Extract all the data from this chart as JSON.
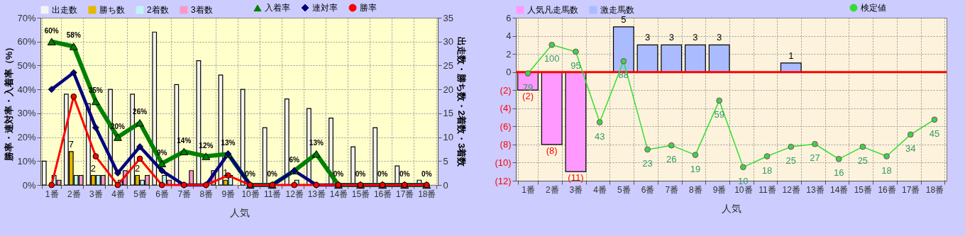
{
  "chart_data": [
    {
      "type": "bar",
      "xlabel": "人気",
      "ylabel": "勝率・連対率・入着率（%）",
      "y2label": "出走数・勝ち数・2着数・3着数",
      "legend": "top",
      "grid": true,
      "categories": [
        "1番",
        "2番",
        "3番",
        "4番",
        "5番",
        "6番",
        "7番",
        "8番",
        "9番",
        "10番",
        "11番",
        "12番",
        "13番",
        "14番",
        "15番",
        "16番",
        "17番",
        "18番"
      ],
      "ylim": [
        0,
        70
      ],
      "yticks": [
        {
          "value": 0,
          "label": "0%"
        },
        {
          "value": 10,
          "label": "10%"
        },
        {
          "value": 20,
          "label": "20%"
        },
        {
          "value": 30,
          "label": "30%"
        },
        {
          "value": 40,
          "label": "40%"
        },
        {
          "value": 50,
          "label": "50%"
        },
        {
          "value": 60,
          "label": "60%"
        },
        {
          "value": 70,
          "label": "70%"
        }
      ],
      "y2lim": [
        0,
        35
      ],
      "y2ticks": [
        0,
        5,
        10,
        15,
        20,
        25,
        30,
        35
      ],
      "series": [
        {
          "name": "出走数",
          "color": "#f4f4f4",
          "axis": "y2",
          "values": [
            5,
            19,
            17,
            20,
            19,
            32,
            21,
            26,
            23,
            20,
            12,
            18,
            16,
            14,
            8,
            12,
            4,
            1
          ]
        },
        {
          "name": "勝ち数",
          "color": "#e6b800",
          "axis": "y2",
          "values": [
            0,
            7,
            2,
            0,
            2,
            0,
            0,
            0,
            1,
            0,
            0,
            0,
            0,
            0,
            0,
            0,
            0,
            0
          ],
          "value_labels": [
            null,
            "7",
            "2",
            null,
            "2",
            null,
            null,
            null,
            "1",
            null,
            null,
            null,
            null,
            null,
            null,
            null,
            null,
            null
          ]
        },
        {
          "name": "2着数",
          "color": "#bff5f5",
          "axis": "y2",
          "values": [
            2,
            2,
            2,
            1,
            1,
            2,
            0,
            0,
            2,
            0,
            0,
            1,
            0,
            0,
            0,
            0,
            0,
            0
          ]
        },
        {
          "name": "3着数",
          "color": "#f59ac8",
          "axis": "y2",
          "values": [
            1,
            2,
            2,
            3,
            2,
            1,
            3,
            3,
            0,
            0,
            0,
            0,
            0,
            0,
            0,
            0,
            0,
            0
          ]
        },
        {
          "name": "入着率",
          "type": "line",
          "color": "#008000",
          "marker": "triangle",
          "axis": "y",
          "values": [
            60,
            58,
            35,
            20,
            26,
            9,
            14,
            12,
            13,
            0,
            0,
            6,
            13,
            0,
            0,
            0,
            0,
            0
          ],
          "value_labels": [
            "60%",
            "58%",
            "35%",
            "20%",
            "26%",
            "9%",
            "14%",
            "12%",
            "13%",
            "0%",
            "0%",
            "6%",
            "13%",
            "0%",
            "0%",
            "0%",
            "0%",
            "0%"
          ]
        },
        {
          "name": "連対率",
          "type": "line",
          "color": "#000080",
          "marker": "diamond",
          "axis": "y",
          "values": [
            40,
            47,
            24,
            5,
            16,
            6,
            0,
            0,
            13,
            0,
            0,
            6,
            0,
            0,
            0,
            0,
            0,
            0
          ]
        },
        {
          "name": "勝率",
          "type": "line",
          "color": "#ff0000",
          "marker": "circle",
          "axis": "y",
          "values": [
            0,
            37,
            12,
            0,
            11,
            0,
            0,
            0,
            4,
            0,
            0,
            0,
            0,
            0,
            0,
            0,
            0,
            0
          ]
        }
      ]
    },
    {
      "type": "bar",
      "xlabel": "人気",
      "legend": "top",
      "grid": true,
      "stacked": true,
      "categories": [
        "1番",
        "2番",
        "3番",
        "4番",
        "5番",
        "6番",
        "7番",
        "8番",
        "9番",
        "10番",
        "11番",
        "12番",
        "13番",
        "14番",
        "15番",
        "16番",
        "17番",
        "18番"
      ],
      "ylim": [
        -12,
        6
      ],
      "yticks": [
        {
          "value": -12,
          "label": "(12)"
        },
        {
          "value": -10,
          "label": "(10)"
        },
        {
          "value": -8,
          "label": "(8)"
        },
        {
          "value": -6,
          "label": "(6)"
        },
        {
          "value": -4,
          "label": "(4)"
        },
        {
          "value": -2,
          "label": "(2)"
        },
        0,
        2,
        4,
        6
      ],
      "y2lim": [
        0,
        120
      ],
      "ref_lines": [
        {
          "axis": "y",
          "value": 0,
          "color": "#ff0000"
        }
      ],
      "series": [
        {
          "name": "人気凡走馬数",
          "color": "#ff99ff",
          "axis": "y",
          "values": [
            -2,
            -8,
            -11,
            null,
            null,
            null,
            null,
            null,
            null,
            null,
            null,
            null,
            null,
            null,
            null,
            null,
            null,
            null
          ],
          "value_labels": [
            "(2)",
            "(8)",
            "(11)",
            null,
            null,
            null,
            null,
            null,
            null,
            null,
            null,
            null,
            null,
            null,
            null,
            null,
            null,
            null
          ]
        },
        {
          "name": "激走馬数",
          "color": "#aabbff",
          "axis": "y",
          "values": [
            null,
            null,
            null,
            null,
            5,
            3,
            3,
            3,
            3,
            null,
            null,
            1,
            null,
            null,
            null,
            null,
            null,
            null
          ],
          "value_labels": [
            null,
            null,
            null,
            null,
            "5",
            "3",
            "3",
            "3",
            "3",
            null,
            null,
            "1",
            null,
            null,
            null,
            null,
            null,
            null
          ]
        },
        {
          "name": "検定値",
          "type": "line",
          "color": "#33dd33",
          "marker": "circle",
          "axis": "y2",
          "values": [
            79,
            100,
            95,
            43,
            88,
            23,
            26,
            19,
            59,
            10,
            18,
            25,
            27,
            16,
            25,
            18,
            34,
            45
          ],
          "value_labels": [
            "79",
            "100",
            "95",
            "43",
            "88",
            "23",
            "26",
            "19",
            "59",
            "10",
            "18",
            "25",
            "27",
            "16",
            "25",
            "18",
            "34",
            "45"
          ]
        }
      ]
    }
  ]
}
